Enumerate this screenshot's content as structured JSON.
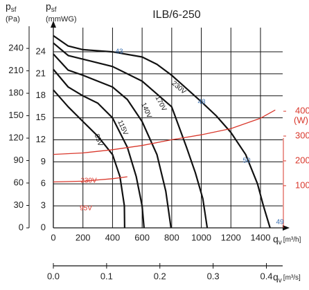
{
  "chart_data": {
    "type": "line",
    "title": "ILB/6-250",
    "y_label": {
      "main": "p",
      "sub": "sf",
      "unit": "(Pa)"
    },
    "y_label_mm": {
      "main": "p",
      "sub": "sf",
      "unit": "(mmWG)"
    },
    "y2_label": "(W)",
    "x_label": {
      "main": "q",
      "sub": "v",
      "unit": "[m³/h]"
    },
    "x2_label": {
      "main": "q",
      "sub": "v",
      "unit": "[m³/s]"
    },
    "xlim": [
      0,
      1550
    ],
    "xticks": [
      0,
      200,
      400,
      600,
      800,
      1000,
      1200,
      1400
    ],
    "x2ticks": [
      {
        "value": 0,
        "label": "0.0"
      },
      0.1,
      0.2,
      0.3,
      0.4
    ],
    "ylim": [
      0,
      27.3
    ],
    "yticks": [
      0,
      3,
      6,
      9,
      12,
      15,
      18,
      21,
      24
    ],
    "pa_ylim": [
      0,
      267.8
    ],
    "pa_ticks": [
      0,
      30,
      60,
      90,
      120,
      150,
      180,
      210,
      240
    ],
    "y2lim": [
      -70,
      737
    ],
    "y2ticks": [
      100,
      200,
      300,
      400
    ],
    "grid": true,
    "series": [
      {
        "name": "230V",
        "color": "#111111",
        "x": [
          0,
          100,
          200,
          400,
          600,
          700,
          800,
          900,
          1000,
          1100,
          1200,
          1300,
          1380,
          1420,
          1465
        ],
        "values": [
          26.2,
          24.8,
          24.3,
          24.0,
          23.3,
          22.3,
          20.8,
          19.0,
          17.2,
          15.3,
          13.0,
          10.0,
          6.0,
          3.0,
          0
        ]
      },
      {
        "name": "170V",
        "color": "#111111",
        "x": [
          0,
          100,
          200,
          400,
          600,
          800,
          900,
          960,
          1010,
          1040
        ],
        "values": [
          25.2,
          23.5,
          23.0,
          22.0,
          20.0,
          16.5,
          11.0,
          7.5,
          4.0,
          0
        ]
      },
      {
        "name": "140V",
        "color": "#111111",
        "x": [
          0,
          100,
          200,
          400,
          500,
          600,
          700,
          760,
          795
        ],
        "values": [
          23.7,
          21.5,
          20.8,
          19.2,
          17.5,
          14.5,
          10.0,
          5.0,
          0
        ]
      },
      {
        "name": "115V",
        "color": "#111111",
        "x": [
          0,
          100,
          200,
          300,
          400,
          500,
          560,
          600,
          613
        ],
        "values": [
          21.6,
          19.2,
          18.0,
          17.0,
          15.0,
          11.0,
          7.0,
          3.0,
          0
        ]
      },
      {
        "name": "95V",
        "color": "#111111",
        "x": [
          0,
          100,
          200,
          300,
          400,
          450,
          480,
          482
        ],
        "values": [
          18.8,
          16.5,
          14.5,
          12.5,
          10.0,
          7.0,
          3.0,
          0
        ]
      },
      {
        "name": "230V",
        "color": "#d9372b",
        "axis": "y2",
        "x": [
          0,
          200,
          400,
          600,
          800,
          1000,
          1200,
          1400,
          1500
        ],
        "values": [
          226,
          232,
          245,
          262,
          285,
          305,
          330,
          372,
          405
        ]
      },
      {
        "name": "95V",
        "color": "#d9372b",
        "axis": "y2",
        "x": [
          0,
          200,
          400,
          500
        ],
        "values": [
          115,
          118,
          128,
          136
        ]
      }
    ],
    "annotations": [
      "43",
      "48",
      "50",
      "49"
    ],
    "annotation_color": "#3a6fb0"
  }
}
